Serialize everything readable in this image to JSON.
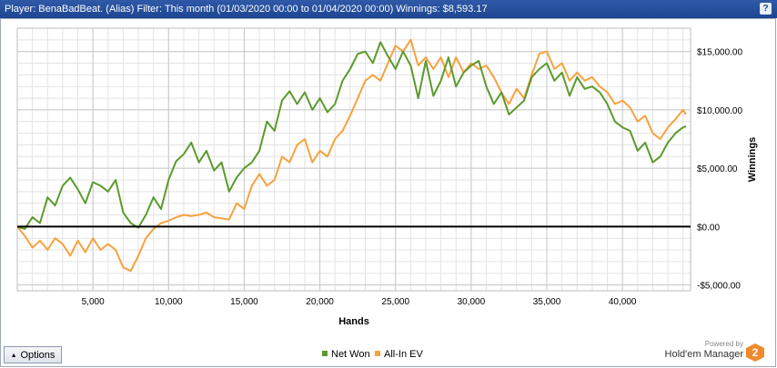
{
  "header": {
    "title": "Player: BenaBadBeat. (Alias) Filter: This month (01/03/2020 00:00 to 01/04/2020 00:00) Winnings: $8,593.17",
    "help_icon": "?"
  },
  "footer": {
    "options_label": "Options",
    "options_icon": "triangle-up-icon",
    "powered_by": "Powered by",
    "brand_name": "Hold'em Manager",
    "brand_badge": "2"
  },
  "colors": {
    "net_won": "#5b9a2d",
    "all_in_ev": "#f7a23e",
    "title_bar": "#1e4591",
    "zero_line": "#000000"
  },
  "chart_data": {
    "type": "line",
    "xlabel": "Hands",
    "ylabel": "Winnings",
    "xlim": [
      0,
      44500
    ],
    "ylim": [
      -5500,
      17000
    ],
    "x_ticks": [
      5000,
      10000,
      15000,
      20000,
      25000,
      30000,
      35000,
      40000
    ],
    "x_tick_labels": [
      "5,000",
      "10,000",
      "15,000",
      "20,000",
      "25,000",
      "30,000",
      "35,000",
      "40,000"
    ],
    "y_ticks": [
      -5000,
      0,
      5000,
      10000,
      15000
    ],
    "y_tick_labels": [
      "-$5,000.00",
      "$0.00",
      "$5,000.00",
      "$10,000.00",
      "$15,000.00"
    ],
    "y_axis_side": "right",
    "grid": true,
    "legend": "bottom-center",
    "series": [
      {
        "name": "Net Won",
        "color": "#5b9a2d",
        "x": [
          0,
          500,
          1000,
          1500,
          2000,
          2500,
          3000,
          3500,
          4000,
          4500,
          5000,
          5500,
          6000,
          6500,
          7000,
          7500,
          8000,
          8500,
          9000,
          9500,
          10000,
          10500,
          11000,
          11500,
          12000,
          12500,
          13000,
          13500,
          14000,
          14500,
          15000,
          15500,
          16000,
          16500,
          17000,
          17500,
          18000,
          18500,
          19000,
          19500,
          20000,
          20500,
          21000,
          21500,
          22000,
          22500,
          23000,
          23500,
          24000,
          24500,
          25000,
          25500,
          26000,
          26500,
          27000,
          27500,
          28000,
          28500,
          29000,
          29500,
          30000,
          30500,
          31000,
          31500,
          32000,
          32500,
          33000,
          33500,
          34000,
          34500,
          35000,
          35500,
          36000,
          36500,
          37000,
          37500,
          38000,
          38500,
          39000,
          39500,
          40000,
          40500,
          41000,
          41500,
          42000,
          42500,
          43000,
          43500,
          44000,
          44200
        ],
        "values": [
          0,
          -200,
          800,
          300,
          2500,
          1800,
          3500,
          4200,
          3200,
          2000,
          3800,
          3500,
          3000,
          4000,
          1200,
          300,
          -100,
          1000,
          2500,
          1500,
          4000,
          5600,
          6200,
          7200,
          5500,
          6500,
          4800,
          5500,
          3000,
          4200,
          5000,
          5500,
          6500,
          9000,
          8200,
          10800,
          11600,
          10500,
          11500,
          10000,
          11000,
          9800,
          10500,
          12500,
          13500,
          14800,
          15000,
          14000,
          15800,
          14600,
          13500,
          15000,
          13800,
          11000,
          14200,
          11200,
          12500,
          14500,
          12000,
          13200,
          13800,
          14200,
          12000,
          10500,
          11500,
          9600,
          10200,
          10800,
          12800,
          13500,
          14000,
          12500,
          13200,
          11200,
          12800,
          11800,
          12000,
          11500,
          10500,
          9000,
          8500,
          8200,
          6500,
          7200,
          5500,
          6000,
          7200,
          8000,
          8500,
          8600
        ]
      },
      {
        "name": "All-In EV",
        "color": "#f7a23e",
        "x": [
          0,
          500,
          1000,
          1500,
          2000,
          2500,
          3000,
          3500,
          4000,
          4500,
          5000,
          5500,
          6000,
          6500,
          7000,
          7500,
          8000,
          8500,
          9000,
          9500,
          10000,
          10500,
          11000,
          11500,
          12000,
          12500,
          13000,
          13500,
          14000,
          14500,
          15000,
          15500,
          16000,
          16500,
          17000,
          17500,
          18000,
          18500,
          19000,
          19500,
          20000,
          20500,
          21000,
          21500,
          22000,
          22500,
          23000,
          23500,
          24000,
          24500,
          25000,
          25500,
          26000,
          26500,
          27000,
          27500,
          28000,
          28500,
          29000,
          29500,
          30000,
          30500,
          31000,
          31500,
          32000,
          32500,
          33000,
          33500,
          34000,
          34500,
          35000,
          35500,
          36000,
          36500,
          37000,
          37500,
          38000,
          38500,
          39000,
          39500,
          40000,
          40500,
          41000,
          41500,
          42000,
          42500,
          43000,
          43500,
          44000,
          44200
        ],
        "values": [
          0,
          -800,
          -1800,
          -1200,
          -2000,
          -1000,
          -1500,
          -2500,
          -1200,
          -2200,
          -1000,
          -2000,
          -1500,
          -2000,
          -3500,
          -3800,
          -2500,
          -1000,
          -200,
          300,
          500,
          800,
          1000,
          900,
          1000,
          1200,
          800,
          700,
          600,
          2000,
          1500,
          3500,
          4500,
          3500,
          4000,
          6000,
          5500,
          7000,
          7500,
          5500,
          6500,
          6000,
          7500,
          8200,
          9500,
          11000,
          12500,
          13000,
          12500,
          14000,
          15500,
          15000,
          16000,
          13800,
          14500,
          13500,
          14500,
          12800,
          14500,
          13200,
          14000,
          13500,
          13800,
          12800,
          11500,
          10500,
          11800,
          11000,
          13000,
          14800,
          15000,
          13500,
          14000,
          12500,
          13200,
          12500,
          12800,
          12000,
          11500,
          10500,
          10800,
          10200,
          9000,
          9500,
          8000,
          7500,
          8500,
          9200,
          10000,
          9600
        ]
      }
    ]
  }
}
